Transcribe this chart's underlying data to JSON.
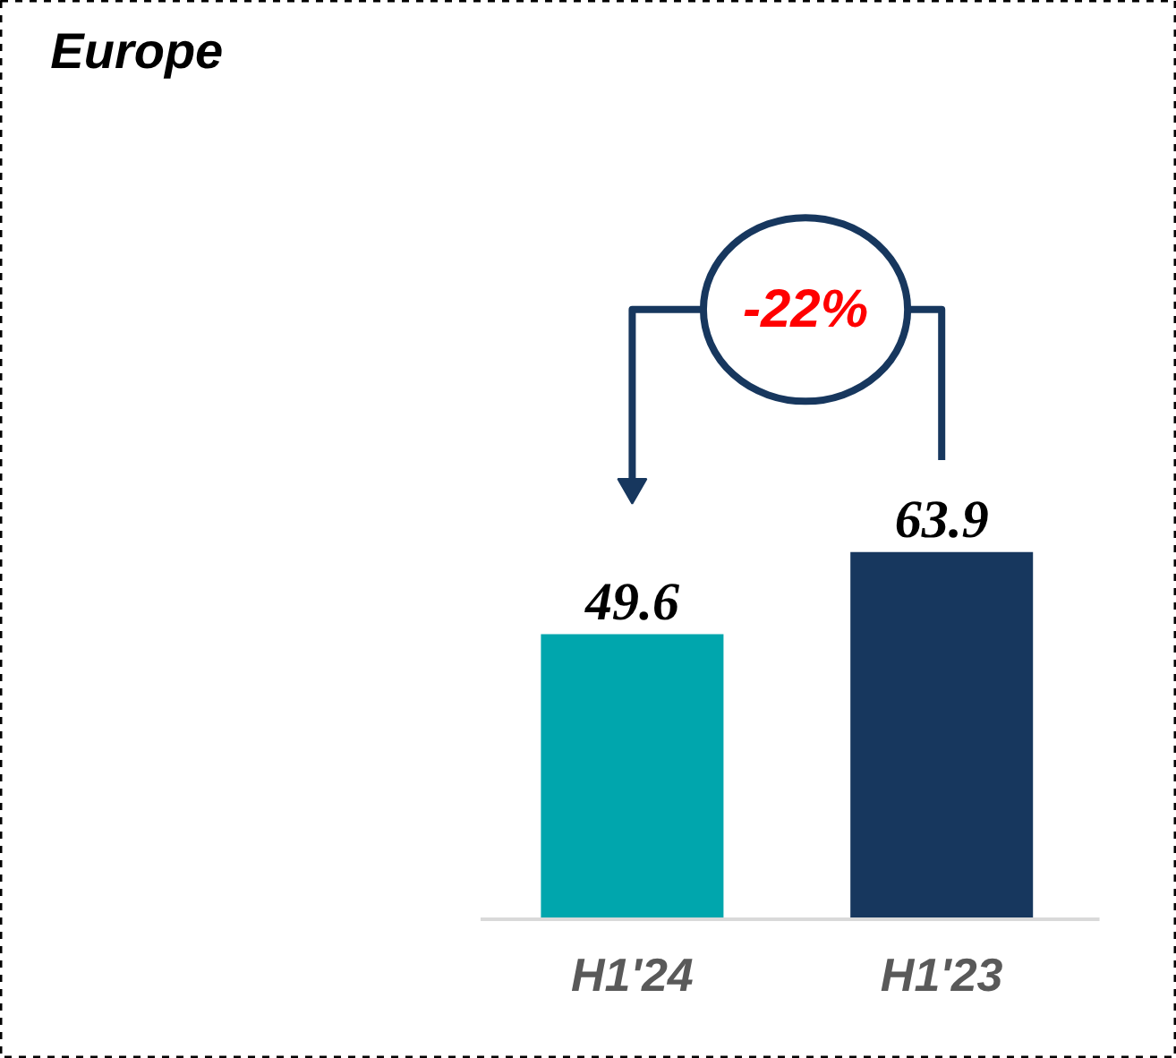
{
  "chart_data": {
    "type": "bar",
    "title": "Europe",
    "categories": [
      "H1'24",
      "H1'23"
    ],
    "values": [
      49.6,
      63.9
    ],
    "colors": [
      "#00a6ad",
      "#17375e"
    ],
    "data_labels": true,
    "annotations": [
      "-22%"
    ]
  }
}
